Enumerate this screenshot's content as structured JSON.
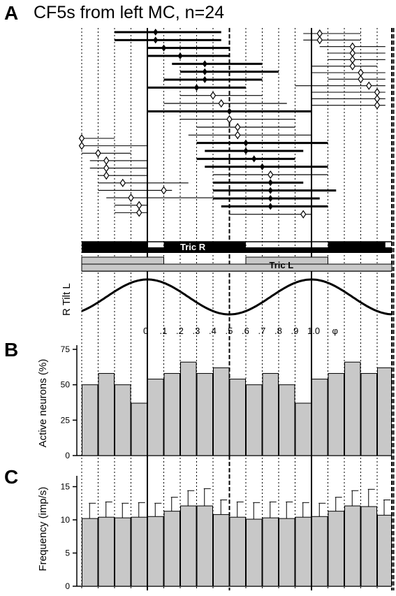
{
  "figure": {
    "title": "CF5s from left MC, n=24",
    "panel_labels": [
      "A",
      "B",
      "C"
    ],
    "colors": {
      "ink": "#000000",
      "bar_fill": "#c8c8c8",
      "background": "#ffffff"
    }
  },
  "chart_data": [
    {
      "panel": "A",
      "type": "raster",
      "title": "CF5s from left MC, n=24",
      "x_range": [
        -0.45,
        1.45
      ],
      "x_unit": "phase",
      "description_of_marks": "horizontal lines = activity period of each neuron, diamond = preferred phase; thick lines/filled diamonds vs thin lines/open diamonds",
      "rows": [
        {
          "start": -0.2,
          "end": 0.45,
          "pref": 0.05,
          "thick": true
        },
        {
          "start": -0.2,
          "end": 0.45,
          "pref": 0.05,
          "thick": true
        },
        {
          "start": 0.0,
          "end": 0.5,
          "pref": 0.1,
          "thick": true
        },
        {
          "start": 0.0,
          "end": 0.5,
          "pref": 0.2,
          "thick": true
        },
        {
          "start": 0.15,
          "end": 0.7,
          "pref": 0.35,
          "thick": true
        },
        {
          "start": 0.2,
          "end": 0.8,
          "pref": 0.35,
          "thick": true
        },
        {
          "start": 0.1,
          "end": 0.7,
          "pref": 0.35,
          "thick": true
        },
        {
          "start": 0.0,
          "end": 0.6,
          "pref": 0.3,
          "thick": true
        },
        {
          "start": 0.2,
          "end": 0.7,
          "pref": 0.4,
          "thick": false
        },
        {
          "start": 0.1,
          "end": 0.85,
          "pref": 0.45,
          "thick": false
        },
        {
          "start": 0.0,
          "end": 1.0,
          "pref": 0.5,
          "thick": true
        },
        {
          "start": 0.2,
          "end": 0.9,
          "pref": 0.5,
          "thick": false
        },
        {
          "start": 0.3,
          "end": 0.9,
          "pref": 0.55,
          "thick": false
        },
        {
          "start": 0.25,
          "end": 1.0,
          "pref": 0.55,
          "thick": false
        },
        {
          "start": 0.3,
          "end": 1.1,
          "pref": 0.6,
          "thick": true
        },
        {
          "start": 0.35,
          "end": 0.95,
          "pref": 0.6,
          "thick": true
        },
        {
          "start": 0.3,
          "end": 0.9,
          "pref": 0.65,
          "thick": true
        },
        {
          "start": 0.35,
          "end": 1.1,
          "pref": 0.7,
          "thick": true
        },
        {
          "start": 0.4,
          "end": 1.1,
          "pref": 0.75,
          "thick": false
        },
        {
          "start": 0.4,
          "end": 0.95,
          "pref": 0.75,
          "thick": true
        },
        {
          "start": 0.4,
          "end": 1.15,
          "pref": 0.75,
          "thick": true
        },
        {
          "start": 0.4,
          "end": 1.05,
          "pref": 0.75,
          "thick": true
        },
        {
          "start": 0.45,
          "end": 1.1,
          "pref": 0.75,
          "thick": true
        },
        {
          "start": 0.5,
          "end": 1.0,
          "pref": 0.95,
          "thick": false
        }
      ],
      "left_cluster": [
        {
          "start": -0.4,
          "end": -0.2,
          "pref": -0.4
        },
        {
          "start": -0.4,
          "end": 0.0,
          "pref": -0.4
        },
        {
          "start": -0.4,
          "end": -0.1,
          "pref": -0.3
        },
        {
          "start": -0.35,
          "end": 0.0,
          "pref": -0.25
        },
        {
          "start": -0.35,
          "end": 0.0,
          "pref": -0.25
        },
        {
          "start": -0.3,
          "end": 0.0,
          "pref": -0.25
        },
        {
          "start": -0.3,
          "end": 0.25,
          "pref": -0.15
        },
        {
          "start": -0.3,
          "end": 0.15,
          "pref": 0.1
        },
        {
          "start": -0.25,
          "end": 0.45,
          "pref": -0.1
        },
        {
          "start": -0.2,
          "end": 0.0,
          "pref": -0.05
        },
        {
          "start": -0.2,
          "end": 0.0,
          "pref": -0.05
        }
      ],
      "right_cluster": [
        {
          "start": 0.95,
          "end": 1.3,
          "pref": 1.05
        },
        {
          "start": 0.95,
          "end": 1.3,
          "pref": 1.05
        },
        {
          "start": 1.05,
          "end": 1.45,
          "pref": 1.25
        },
        {
          "start": 1.1,
          "end": 1.45,
          "pref": 1.25
        },
        {
          "start": 1.1,
          "end": 1.45,
          "pref": 1.25
        },
        {
          "start": 1.0,
          "end": 1.4,
          "pref": 1.25
        },
        {
          "start": 1.0,
          "end": 1.45,
          "pref": 1.3
        },
        {
          "start": 1.1,
          "end": 1.45,
          "pref": 1.3
        },
        {
          "start": 0.9,
          "end": 1.45,
          "pref": 1.35
        },
        {
          "start": 1.0,
          "end": 1.45,
          "pref": 1.4
        },
        {
          "start": 1.0,
          "end": 1.45,
          "pref": 1.4
        },
        {
          "start": 1.0,
          "end": 1.45,
          "pref": 1.4
        }
      ],
      "muscle_bars": [
        {
          "name": "Tric R",
          "segments": [
            [
              -0.45,
              0.0
            ],
            [
              0.1,
              0.6
            ],
            [
              1.1,
              1.45
            ]
          ],
          "color": "#000000"
        },
        {
          "name": "Tric L",
          "segments": [
            [
              -0.45,
              0.1
            ],
            [
              0.6,
              1.1
            ]
          ],
          "color": "#c8c8c8"
        }
      ],
      "tilt_trace": {
        "label": "R Tilt L",
        "shape": "cosine",
        "peaks_at_phase": [
          0.0,
          1.0
        ],
        "troughs_at_phase": [
          -0.5,
          0.5
        ]
      },
      "phase_ticks": [
        "0",
        ".1",
        ".2",
        ".3",
        ".4",
        ".5",
        ".6",
        ".7",
        ".8",
        ".9",
        "1.0"
      ],
      "phase_symbol": "φ"
    },
    {
      "panel": "B",
      "type": "bar",
      "ylabel": "Active neurons (%)",
      "ylim": [
        0,
        75
      ],
      "yticks": [
        0,
        25,
        50,
        75
      ],
      "x_bins_phase_start": [
        -0.4,
        -0.3,
        -0.2,
        -0.1,
        0.0,
        0.1,
        0.2,
        0.3,
        0.4,
        0.5,
        0.6,
        0.7,
        0.8,
        0.9,
        1.0,
        1.1,
        1.2,
        1.3,
        1.4
      ],
      "values": [
        50,
        58,
        50,
        37,
        54,
        58,
        66,
        58,
        62,
        54,
        50,
        58,
        50,
        37,
        54,
        58,
        66,
        58,
        62
      ]
    },
    {
      "panel": "C",
      "type": "bar",
      "ylabel": "Frequency (imp/s)",
      "ylim": [
        0,
        16
      ],
      "yticks": [
        0,
        5,
        10,
        15
      ],
      "x_bins_phase_start": [
        -0.4,
        -0.3,
        -0.2,
        -0.1,
        0.0,
        0.1,
        0.2,
        0.3,
        0.4,
        0.5,
        0.6,
        0.7,
        0.8,
        0.9,
        1.0,
        1.1,
        1.2,
        1.3,
        1.4
      ],
      "values": [
        10.2,
        10.4,
        10.3,
        10.4,
        10.5,
        11.3,
        12.1,
        12.1,
        10.8,
        10.4,
        10.1,
        10.3,
        10.2,
        10.4,
        10.5,
        11.3,
        12.1,
        12.0,
        10.7
      ],
      "errors": [
        2.3,
        2.3,
        2.2,
        2.2,
        2.0,
        2.1,
        2.3,
        2.6,
        2.2,
        2.3,
        2.5,
        2.4,
        2.5,
        2.2,
        2.0,
        2.1,
        2.3,
        2.6,
        2.3
      ]
    }
  ]
}
